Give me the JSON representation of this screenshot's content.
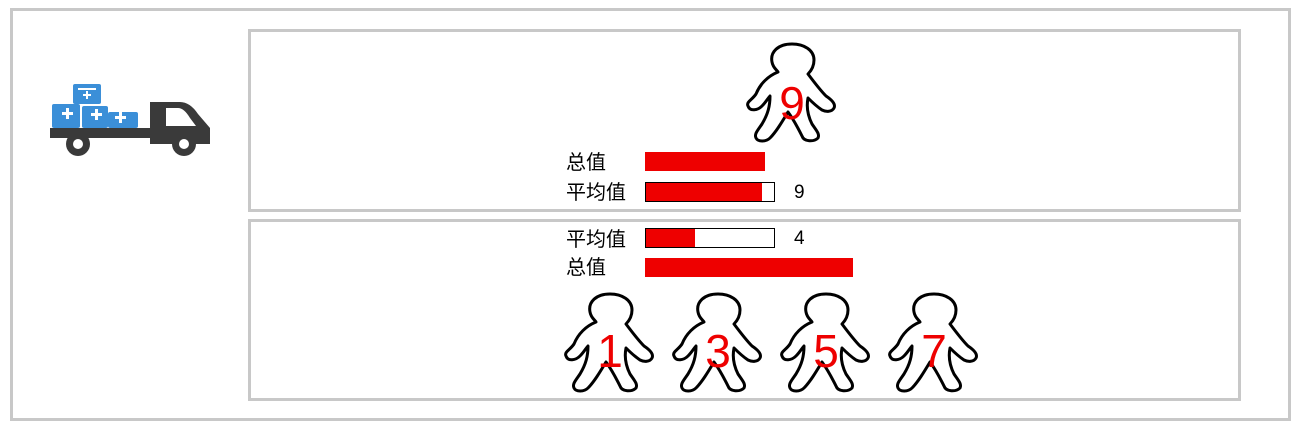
{
  "colors": {
    "accent": "#ee0000",
    "border": "#c8c8c8",
    "truck_box": "#3b8fd8",
    "truck_body": "#3a3a3a"
  },
  "truck": {
    "icon": "delivery-truck-icon"
  },
  "top_panel": {
    "person_value": "9",
    "total_label": "总值",
    "average_label": "平均值",
    "average_value": "9",
    "total_fraction": 0.9,
    "average_fraction": 0.91
  },
  "bottom_panel": {
    "average_label": "平均值",
    "average_value": "4",
    "average_fraction": 0.38,
    "total_label": "总值",
    "total_fraction": 1.0,
    "people": [
      "1",
      "3",
      "5",
      "7"
    ]
  }
}
